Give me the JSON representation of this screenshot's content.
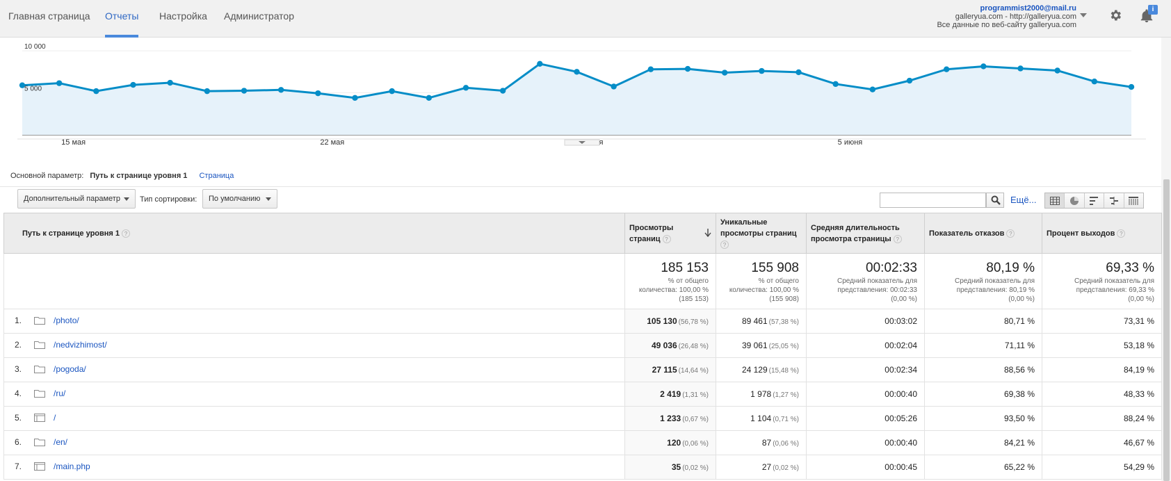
{
  "nav": {
    "tabs": [
      {
        "label": "Главная страница"
      },
      {
        "label": "Отчеты"
      },
      {
        "label": "Настройка"
      },
      {
        "label": "Администратор"
      }
    ]
  },
  "account": {
    "email": "programmist2000@mail.ru",
    "site": "galleryua.com - http://galleryua.com",
    "view": "Все данные по веб-сайту galleryua.com",
    "notification_badge": "i"
  },
  "chart_data": {
    "type": "area",
    "y_ticks": [
      "10 000",
      "5 000"
    ],
    "ylim": [
      0,
      11000
    ],
    "x_tick_labels": [
      "15 мая",
      "22 мая",
      "29 мая",
      "5 июня"
    ],
    "x_tick_indices": [
      1,
      8,
      15,
      22
    ],
    "values": [
      5900,
      6150,
      5200,
      5950,
      6200,
      5200,
      5250,
      5350,
      4950,
      4400,
      5200,
      4400,
      5600,
      5250,
      8450,
      7500,
      5750,
      7800,
      7850,
      7400,
      7600,
      7450,
      6050,
      5400,
      6450,
      7800,
      8150,
      7900,
      7650,
      6350,
      5700
    ],
    "color": "#058dc7",
    "fill": "#e6f2fa"
  },
  "params": {
    "primary_label": "Основной параметр:",
    "primary_value": "Путь к странице уровня 1",
    "alt_link": "Страница"
  },
  "toolbar": {
    "secondary_dim": "Дополнительный параметр",
    "sort_label": "Тип сортировки:",
    "sort_value": "По умолчанию",
    "search_value": "",
    "more": "Ещё..."
  },
  "table": {
    "headers": {
      "dim": "Путь к странице уровня 1",
      "pageviews_1": "Просмотры",
      "pageviews_2": "страниц",
      "unique_1": "Уникальные",
      "unique_2": "просмотры страниц",
      "avgtime_1": "Средняя длительность",
      "avgtime_2": "просмотра страницы",
      "bounce": "Показатель отказов",
      "exit": "Процент выходов"
    },
    "totals": {
      "pageviews": "185 153",
      "pageviews_sub1": "% от общего",
      "pageviews_sub2": "количества: 100,00 %",
      "pageviews_sub3": "(185 153)",
      "unique": "155 908",
      "unique_sub1": "% от общего",
      "unique_sub2": "количества: 100,00 %",
      "unique_sub3": "(155 908)",
      "avgtime": "00:02:33",
      "avgtime_sub1": "Средний показатель для",
      "avgtime_sub2": "представления: 00:02:33",
      "avgtime_sub3": "(0,00 %)",
      "bounce": "80,19 %",
      "bounce_sub1": "Средний показатель для",
      "bounce_sub2": "представления: 80,19 %",
      "bounce_sub3": "(0,00 %)",
      "exit": "69,33 %",
      "exit_sub1": "Средний показатель для",
      "exit_sub2": "представления: 69,33 %",
      "exit_sub3": "(0,00 %)"
    },
    "rows": [
      {
        "n": "1.",
        "icon": "folder-icon",
        "path": "/photo/",
        "pv": "105 130",
        "pv_pct": "(56,78 %)",
        "uv": "89 461",
        "uv_pct": "(57,38 %)",
        "time": "00:03:02",
        "bounce": "80,71 %",
        "exit": "73,31 %"
      },
      {
        "n": "2.",
        "icon": "folder-icon",
        "path": "/nedvizhimost/",
        "pv": "49 036",
        "pv_pct": "(26,48 %)",
        "uv": "39 061",
        "uv_pct": "(25,05 %)",
        "time": "00:02:04",
        "bounce": "71,11 %",
        "exit": "53,18 %"
      },
      {
        "n": "3.",
        "icon": "folder-icon",
        "path": "/pogoda/",
        "pv": "27 115",
        "pv_pct": "(14,64 %)",
        "uv": "24 129",
        "uv_pct": "(15,48 %)",
        "time": "00:02:34",
        "bounce": "88,56 %",
        "exit": "84,19 %"
      },
      {
        "n": "4.",
        "icon": "folder-icon",
        "path": "/ru/",
        "pv": "2 419",
        "pv_pct": "(1,31 %)",
        "uv": "1 978",
        "uv_pct": "(1,27 %)",
        "time": "00:00:40",
        "bounce": "69,38 %",
        "exit": "48,33 %"
      },
      {
        "n": "5.",
        "icon": "page-icon",
        "path": "/",
        "pv": "1 233",
        "pv_pct": "(0,67 %)",
        "uv": "1 104",
        "uv_pct": "(0,71 %)",
        "time": "00:05:26",
        "bounce": "93,50 %",
        "exit": "88,24 %"
      },
      {
        "n": "6.",
        "icon": "folder-icon",
        "path": "/en/",
        "pv": "120",
        "pv_pct": "(0,06 %)",
        "uv": "87",
        "uv_pct": "(0,06 %)",
        "time": "00:00:40",
        "bounce": "84,21 %",
        "exit": "46,67 %"
      },
      {
        "n": "7.",
        "icon": "page-icon",
        "path": "/main.php",
        "pv": "35",
        "pv_pct": "(0,02 %)",
        "uv": "27",
        "uv_pct": "(0,02 %)",
        "time": "00:00:45",
        "bounce": "65,22 %",
        "exit": "54,29 %"
      }
    ]
  }
}
